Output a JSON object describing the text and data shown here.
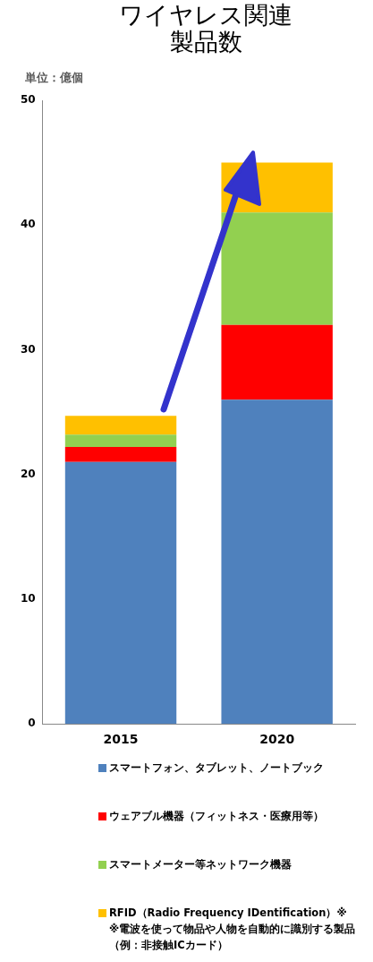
{
  "chart_data": {
    "type": "bar",
    "title": "ワイヤレス関連製品数",
    "ylabel": "単位：億個",
    "categories": [
      "2015",
      "2020"
    ],
    "stacked": true,
    "grid": false,
    "legend": "bottom",
    "series": [
      {
        "name": "スマートフォン、タブレット、ノートブック",
        "color": "#4f81bd",
        "values": [
          21,
          26
        ]
      },
      {
        "name": "ウェアブル機器（フィットネス・医療用等）",
        "color": "#ff0000",
        "values": [
          1.2,
          6
        ]
      },
      {
        "name": "スマートメーター等ネットワーク機器",
        "color": "#92d050",
        "values": [
          1,
          9
        ]
      },
      {
        "name": "RFID（Radio Frequency IDentification）※",
        "color": "#ffc000",
        "values": [
          1.5,
          4
        ]
      }
    ],
    "annotations": [
      "※電波を使って物品や人物を自動的に識別する製品（例：非接触ICカード）"
    ],
    "ylim": [
      0,
      50
    ],
    "yticks": [
      0,
      10,
      20,
      30,
      40,
      50
    ]
  }
}
